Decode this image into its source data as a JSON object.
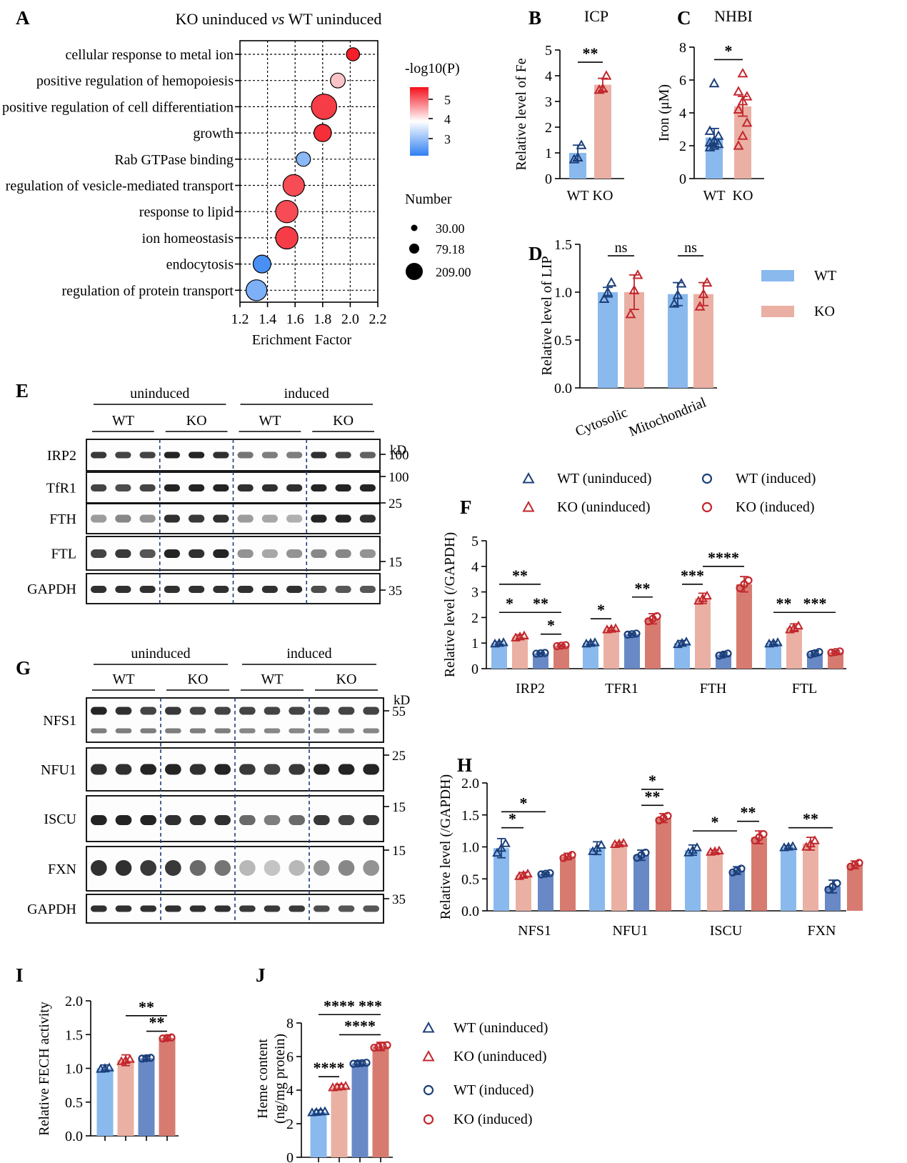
{
  "colors": {
    "wt_un_bar": "#8ab9ed",
    "ko_un_bar": "#eab0a4",
    "wt_in_bar": "#6989c6",
    "ko_in_bar": "#d77b71",
    "wt_marker": "#1b3f7a",
    "ko_marker": "#c2272d",
    "blot_band": "#1b1b1b",
    "divider": "#1f3d7a",
    "heat_high": "#f4101c",
    "heat_mid": "#ffffff",
    "heat_low": "#2f80f2"
  },
  "panels": {
    "A": "A",
    "B": "B",
    "C": "C",
    "D": "D",
    "E": "E",
    "F": "F",
    "G": "G",
    "H": "H",
    "I": "I",
    "J": "J"
  },
  "chart_data": [
    {
      "id": "A",
      "type": "scatter",
      "title": "KO uninduced vs WT uninduced",
      "title_parts": [
        "KO uninduced ",
        "vs",
        " WT uninduced"
      ],
      "xlabel": "Erichment Factor",
      "ylabel": "",
      "xlim": [
        1.2,
        2.2
      ],
      "xticks": [
        "1.2",
        "1.4",
        "1.6",
        "1.8",
        "2.0",
        "2.2"
      ],
      "grid": true,
      "categories": [
        "cellular response to metal ion",
        "positive regulation of hemopoiesis",
        "positive regulation of cell differentiation",
        "growth",
        "Rab GTPase binding",
        "regulation of vesicle-mediated transport",
        "response to lipid",
        "ion homeostasis",
        "endocytosis",
        "regulation of protein transport"
      ],
      "points": [
        {
          "term": "cellular response to metal ion",
          "x": 2.02,
          "number": 30,
          "logp": 5.6
        },
        {
          "term": "positive regulation of hemopoiesis",
          "x": 1.91,
          "number": 45,
          "logp": 4.5
        },
        {
          "term": "positive regulation of cell differentiation",
          "x": 1.81,
          "number": 209,
          "logp": 5.4
        },
        {
          "term": "growth",
          "x": 1.8,
          "number": 75,
          "logp": 5.5
        },
        {
          "term": "Rab GTPase binding",
          "x": 1.66,
          "number": 40,
          "logp": 3.2
        },
        {
          "term": "regulation of vesicle-mediated transport",
          "x": 1.59,
          "number": 135,
          "logp": 5.3
        },
        {
          "term": "response to lipid",
          "x": 1.54,
          "number": 150,
          "logp": 5.3
        },
        {
          "term": "ion homeostasis",
          "x": 1.54,
          "number": 150,
          "logp": 5.4
        },
        {
          "term": "endocytosis",
          "x": 1.36,
          "number": 79,
          "logp": 2.7
        },
        {
          "term": "regulation of protein transport",
          "x": 1.32,
          "number": 125,
          "logp": 3.1
        }
      ],
      "color_legend": {
        "title": "-log10(P)",
        "ticks": [
          "5",
          "4",
          "3"
        ]
      },
      "size_legend": {
        "title": "Number",
        "labels": [
          "30.00",
          "79.18",
          "209.00"
        ]
      }
    },
    {
      "id": "B",
      "type": "bar",
      "title": "ICP",
      "ylabel": "Relative level  of Fe",
      "categories": [
        "WT",
        "KO"
      ],
      "values": [
        1.0,
        3.65
      ],
      "errors": [
        0.3,
        0.25
      ],
      "points": [
        [
          0.75,
          0.82,
          1.3
        ],
        [
          3.45,
          3.5,
          4.0
        ]
      ],
      "ylim": [
        0,
        5
      ],
      "yticks": [
        "0",
        "1",
        "2",
        "3",
        "4",
        "5"
      ],
      "sig": [
        {
          "from": 0,
          "to": 1,
          "label": "**"
        }
      ]
    },
    {
      "id": "C",
      "type": "bar",
      "title": "NHBI",
      "ylabel": "Iron (μM)",
      "categories": [
        "WT",
        "KO"
      ],
      "values": [
        2.5,
        4.4
      ],
      "errors": [
        0.55,
        0.6
      ],
      "points": [
        [
          1.9,
          2.0,
          2.1,
          2.2,
          2.3,
          2.6,
          2.9,
          5.8
        ],
        [
          2.0,
          2.6,
          3.4,
          4.2,
          4.7,
          5.0,
          5.3,
          6.4
        ]
      ],
      "ylim": [
        0,
        8
      ],
      "yticks": [
        "0",
        "2",
        "4",
        "6",
        "8"
      ],
      "sig": [
        {
          "from": 0,
          "to": 1,
          "label": "*"
        }
      ]
    },
    {
      "id": "D",
      "type": "bar",
      "ylabel": "Relative level of LIP",
      "categories": [
        "Cytosolic",
        "Mitochondrial"
      ],
      "series": [
        {
          "name": "WT",
          "values": [
            1.0,
            0.98
          ],
          "errors": [
            0.05,
            0.12
          ],
          "points": [
            [
              0.93,
              1.0,
              1.1
            ],
            [
              0.88,
              0.97,
              1.09
            ]
          ]
        },
        {
          "name": "KO",
          "values": [
            1.0,
            0.98
          ],
          "errors": [
            0.18,
            0.12
          ],
          "points": [
            [
              0.77,
              1.02,
              1.18
            ],
            [
              0.85,
              0.98,
              1.1
            ]
          ]
        }
      ],
      "ylim": [
        0,
        1.5
      ],
      "yticks": [
        "0.0",
        "0.5",
        "1.0",
        "1.5"
      ],
      "sig": [
        {
          "group": 0,
          "label": "ns"
        },
        {
          "group": 1,
          "label": "ns"
        }
      ]
    },
    {
      "id": "F",
      "type": "bar",
      "ylabel": "Relative level (/GAPDH)",
      "categories": [
        "IRP2",
        "TFR1",
        "FTH",
        "FTL"
      ],
      "series": [
        {
          "name": "WT (uninduced)",
          "values": [
            1.0,
            1.0,
            1.0,
            1.0
          ],
          "errors": [
            0.05,
            0.05,
            0.1,
            0.05
          ]
        },
        {
          "name": "KO (uninduced)",
          "values": [
            1.25,
            1.55,
            2.75,
            1.6
          ],
          "errors": [
            0.08,
            0.05,
            0.2,
            0.15
          ]
        },
        {
          "name": "WT (induced)",
          "values": [
            0.6,
            1.35,
            0.55,
            0.6
          ],
          "errors": [
            0.03,
            0.04,
            0.08,
            0.1
          ]
        },
        {
          "name": "KO (induced)",
          "values": [
            0.9,
            1.95,
            3.3,
            0.65
          ],
          "errors": [
            0.04,
            0.2,
            0.3,
            0.05
          ]
        }
      ],
      "ylim": [
        0,
        5
      ],
      "yticks": [
        "0",
        "1",
        "2",
        "3",
        "4",
        "5"
      ],
      "sig": [
        {
          "group": 0,
          "a": 0,
          "b": 1,
          "label": "*",
          "y": 2.2
        },
        {
          "group": 0,
          "a": 0,
          "b": 2,
          "label": "**",
          "y": 3.3
        },
        {
          "group": 0,
          "a": 1,
          "b": 3,
          "label": "**",
          "y": 2.2
        },
        {
          "group": 0,
          "a": 2,
          "b": 3,
          "label": "*",
          "y": 1.35
        },
        {
          "group": 1,
          "a": 0,
          "b": 1,
          "label": "*",
          "y": 1.95
        },
        {
          "group": 1,
          "a": 2,
          "b": 3,
          "label": "**",
          "y": 2.8
        },
        {
          "group": 2,
          "a": 0,
          "b": 1,
          "label": "***",
          "y": 3.3
        },
        {
          "group": 2,
          "a": 1,
          "b": 3,
          "label": "****",
          "y": 4.0
        },
        {
          "group": 3,
          "a": 0,
          "b": 1,
          "label": "**",
          "y": 2.2
        },
        {
          "group": 3,
          "a": 1,
          "b": 3,
          "label": "***",
          "y": 2.2
        }
      ]
    },
    {
      "id": "H",
      "type": "bar",
      "ylabel": "Relative level (/GAPDH)",
      "categories": [
        "NFS1",
        "NFU1",
        "ISCU",
        "FXN"
      ],
      "series": [
        {
          "name": "WT (uninduced)",
          "values": [
            0.98,
            0.98,
            0.95,
            1.0
          ],
          "errors": [
            0.15,
            0.1,
            0.08,
            0.02
          ]
        },
        {
          "name": "KO (uninduced)",
          "values": [
            0.56,
            1.05,
            0.93,
            1.05
          ],
          "errors": [
            0.04,
            0.02,
            0.02,
            0.1
          ]
        },
        {
          "name": "WT (induced)",
          "values": [
            0.58,
            0.87,
            0.63,
            0.38
          ],
          "errors": [
            0.02,
            0.08,
            0.06,
            0.1
          ]
        },
        {
          "name": "KO (induced)",
          "values": [
            0.85,
            1.45,
            1.15,
            0.72
          ],
          "errors": [
            0.05,
            0.07,
            0.1,
            0.06
          ]
        }
      ],
      "ylim": [
        0,
        2.0
      ],
      "yticks": [
        "0.0",
        "0.5",
        "1.0",
        "1.5",
        "2.0"
      ],
      "sig": [
        {
          "group": 0,
          "a": 0,
          "b": 1,
          "label": "*",
          "y": 1.3
        },
        {
          "group": 0,
          "a": 0,
          "b": 2,
          "label": "*",
          "y": 1.55
        },
        {
          "group": 1,
          "a": 2,
          "b": 3,
          "label": "*",
          "y": 1.9
        },
        {
          "group": 1,
          "a": 2,
          "b": 3,
          "label": "**",
          "y": 1.65
        },
        {
          "group": 2,
          "a": 0,
          "b": 2,
          "label": "*",
          "y": 1.25
        },
        {
          "group": 2,
          "a": 2,
          "b": 3,
          "label": "**",
          "y": 1.4
        },
        {
          "group": 3,
          "a": 0,
          "b": 2,
          "label": "**",
          "y": 1.3
        }
      ]
    },
    {
      "id": "I",
      "type": "bar",
      "ylabel": "Relative FECH activity",
      "series": [
        {
          "name": "WT (uninduced)",
          "values": [
            1.0
          ],
          "errors": [
            0.05
          ]
        },
        {
          "name": "KO (uninduced)",
          "values": [
            1.12
          ],
          "errors": [
            0.08
          ]
        },
        {
          "name": "WT (induced)",
          "values": [
            1.15
          ],
          "errors": [
            0.03
          ]
        },
        {
          "name": "KO (induced)",
          "values": [
            1.45
          ],
          "errors": [
            0.04
          ]
        }
      ],
      "ylim": [
        0,
        2.0
      ],
      "yticks": [
        "0.0",
        "0.5",
        "1.0",
        "1.5",
        "2.0"
      ],
      "sig": [
        {
          "a": 1,
          "b": 3,
          "label": "**",
          "y": 1.78
        },
        {
          "a": 2,
          "b": 3,
          "label": "**",
          "y": 1.55
        }
      ]
    },
    {
      "id": "J",
      "type": "bar",
      "ylabel": "Heme content",
      "ylabel2": "(ng/mg protein)",
      "series": [
        {
          "name": "WT (uninduced)",
          "values": [
            2.7
          ],
          "errors": [
            0.12
          ]
        },
        {
          "name": "KO (uninduced)",
          "values": [
            4.2
          ],
          "errors": [
            0.15
          ]
        },
        {
          "name": "WT (induced)",
          "values": [
            5.6
          ],
          "errors": [
            0.1
          ]
        },
        {
          "name": "KO (induced)",
          "values": [
            6.6
          ],
          "errors": [
            0.25
          ]
        }
      ],
      "ylim": [
        0,
        8
      ],
      "yticks": [
        "0",
        "2",
        "4",
        "6",
        "8"
      ],
      "sig": [
        {
          "a": 0,
          "b": 1,
          "label": "****",
          "y": 4.8
        },
        {
          "a": 0,
          "b": 2,
          "label": "****",
          "y": 8.5
        },
        {
          "a": 1,
          "b": 3,
          "label": "****",
          "y": 7.3
        },
        {
          "a": 2,
          "b": 3,
          "label": "***",
          "y": 8.5
        }
      ]
    }
  ],
  "legends": {
    "D": [
      "WT",
      "KO"
    ],
    "F": [
      "WT (uninduced)",
      "WT (induced)",
      "KO (uninduced)",
      "KO (induced)"
    ],
    "J": [
      "WT (uninduced)",
      "KO (uninduced)",
      "WT (induced)",
      "KO (induced)"
    ]
  },
  "blots": {
    "E": {
      "conditions": [
        "uninduced",
        "induced"
      ],
      "genotypes": [
        "WT",
        "KO",
        "WT",
        "KO"
      ],
      "unit": "kD",
      "rows": [
        {
          "label": "IRP2",
          "marker": "100"
        },
        {
          "label": "TfR1",
          "marker": "100"
        },
        {
          "label": "FTH",
          "marker": "25"
        },
        {
          "label": "FTL",
          "marker": "15"
        },
        {
          "label": "GAPDH",
          "marker": "35"
        }
      ]
    },
    "G": {
      "conditions": [
        "uninduced",
        "induced"
      ],
      "genotypes": [
        "WT",
        "KO",
        "WT",
        "KO"
      ],
      "unit": "kD",
      "rows": [
        {
          "label": "NFS1",
          "marker": "55"
        },
        {
          "label": "NFU1",
          "marker": "25"
        },
        {
          "label": "ISCU",
          "marker": "15"
        },
        {
          "label": "FXN",
          "marker": "15"
        },
        {
          "label": "GAPDH",
          "marker": "35"
        }
      ]
    }
  }
}
